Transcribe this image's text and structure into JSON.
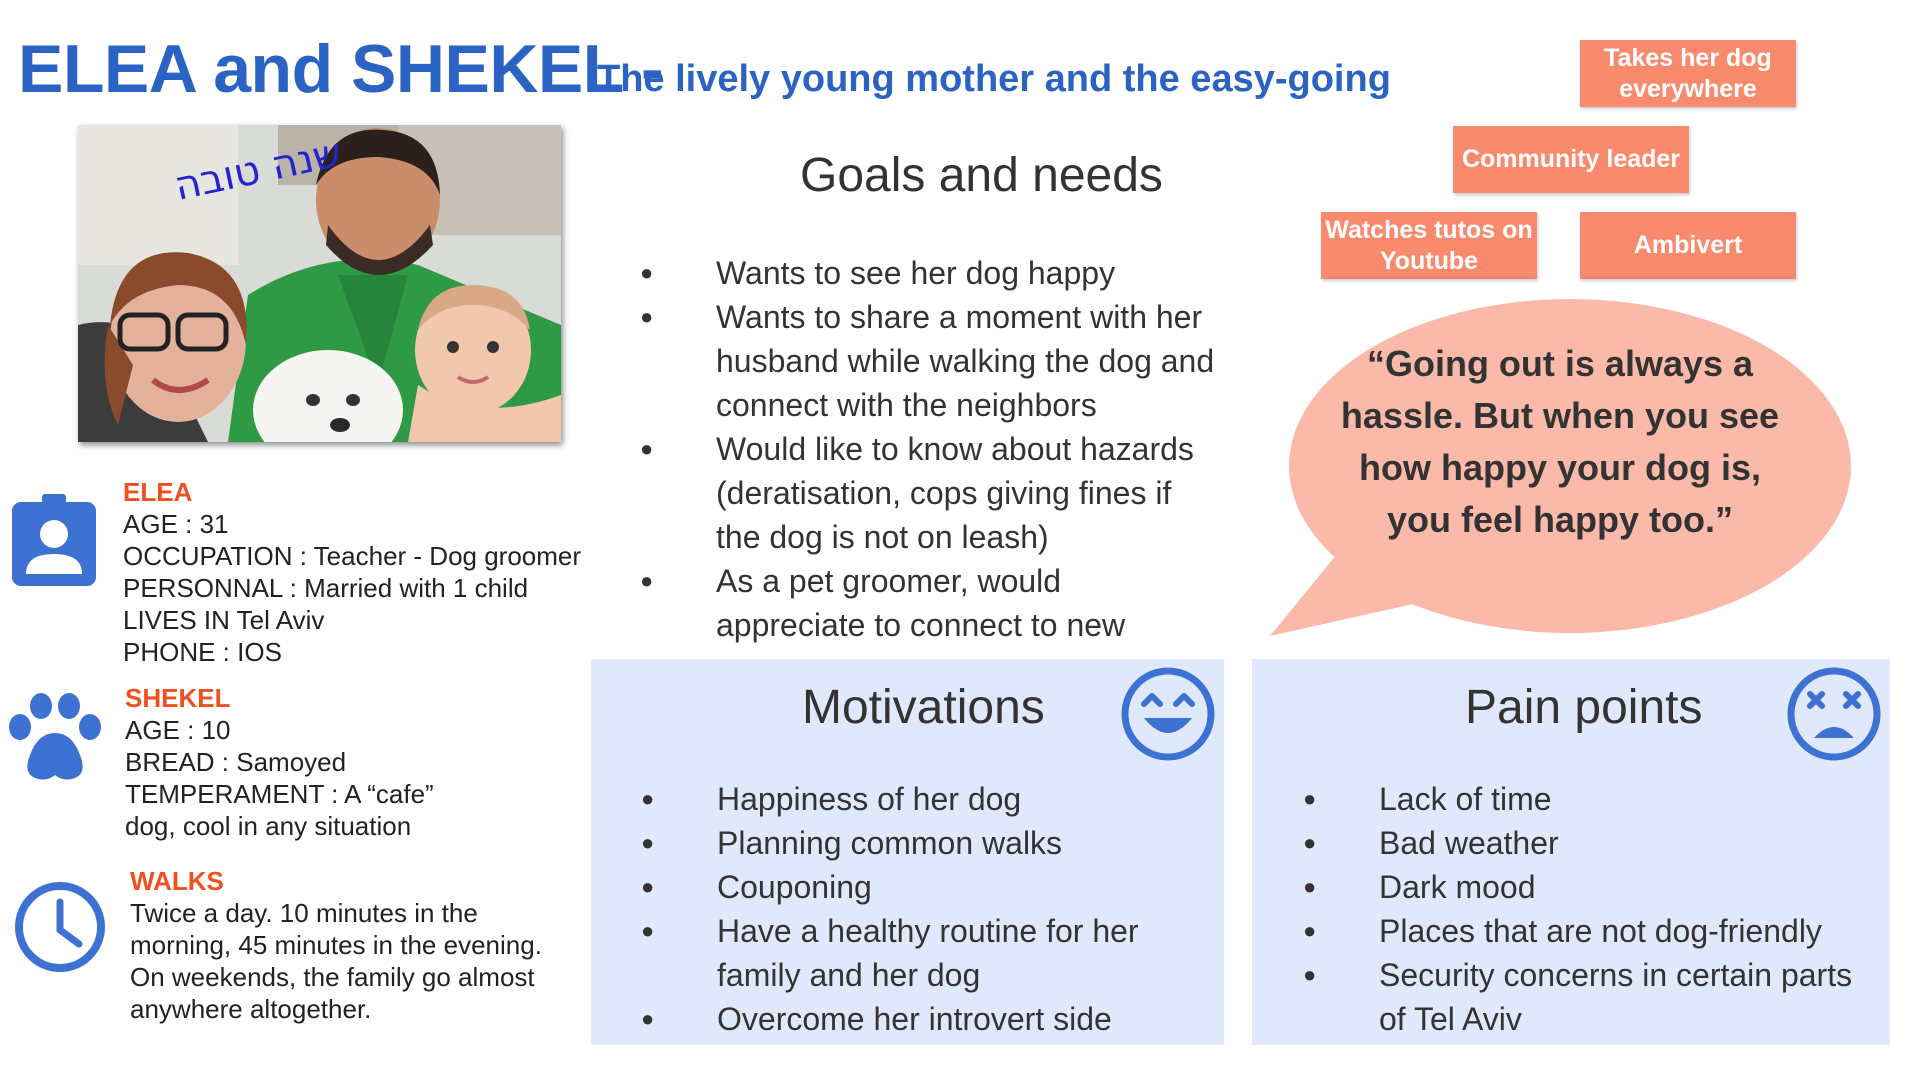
{
  "header": {
    "title": "ELEA and SHEKEL -",
    "subtitle": "The lively young mother and the easy-going"
  },
  "photo": {
    "overlay_text": "שנה טובה"
  },
  "profile": {
    "elea": {
      "label": "ELEA",
      "lines": [
        "AGE : 31",
        "OCCUPATION : Teacher - Dog groomer",
        "PERSONNAL : Married with 1 child",
        "LIVES IN Tel Aviv",
        "PHONE : IOS"
      ]
    },
    "shekel": {
      "label": "SHEKEL",
      "lines": [
        "AGE : 10",
        "BREAD : Samoyed",
        "TEMPERAMENT : A “cafe”",
        "dog, cool in any situation"
      ]
    },
    "walks": {
      "label": "WALKS",
      "lines": [
        "Twice a day. 10 minutes in the",
        "morning, 45 minutes in the evening.",
        "On weekends, the family go almost",
        "anywhere altogether."
      ]
    }
  },
  "goals": {
    "title": "Goals and needs",
    "items": [
      "Wants to see her dog happy",
      "Wants to share a moment with her husband while walking the dog and connect with the neighbors",
      "Would like to know about hazards (deratisation, cops giving fines if the dog is not on leash)",
      "As a pet groomer, would appreciate to connect to new customers"
    ]
  },
  "tags": {
    "t1": "Takes her dog everywhere",
    "t2": "Community leader",
    "t3": "Watches tutos on Youtube",
    "t4": "Ambivert"
  },
  "quote": {
    "text": "“Going out is always a hassle. But when you see how happy your dog is, you feel happy too.”"
  },
  "motivations": {
    "title": "Motivations",
    "items": [
      "Happiness of her dog",
      "Planning common walks",
      "Couponing",
      "Have a healthy routine for her family and her dog",
      "Overcome her introvert side"
    ]
  },
  "pain_points": {
    "title": "Pain points",
    "items": [
      "Lack of time",
      "Bad weather",
      "Dark mood",
      "Places that are not dog-friendly",
      "Security concerns in certain parts of Tel Aviv"
    ]
  },
  "colors": {
    "blue": "#2b63c4",
    "orange_label": "#f0501e",
    "tag_bg": "#fa8a6e",
    "bubble_bg": "#fbbaa9",
    "panel_bg": "#e0e9fb",
    "icon_blue": "#3d72d2"
  },
  "icons": {
    "elea": "contact-badge-icon",
    "shekel": "paw-icon",
    "walks": "clock-icon",
    "motivations": "happy-face-icon",
    "pain": "dizzy-sad-face-icon"
  }
}
